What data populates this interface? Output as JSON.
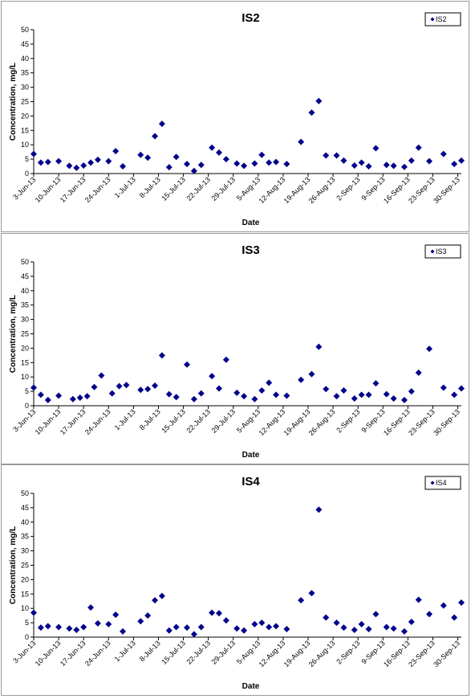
{
  "chart_data": [
    {
      "type": "scatter",
      "title": "IS2",
      "xlabel": "Date",
      "ylabel": "Concentration, mg/L",
      "ylim": [
        0,
        50
      ],
      "yticks": [
        "0",
        "5",
        "10",
        "15",
        "20",
        "25",
        "30",
        "35",
        "40",
        "45",
        "50"
      ],
      "xticks": [
        "3-Jun-13",
        "10-Jun-13",
        "17-Jun-13",
        "24-Jun-13",
        "1-Jul-13",
        "8-Jul-13",
        "15-Jul-13",
        "22-Jul-13",
        "29-Jul-13",
        "5-Aug-13",
        "12-Aug-13",
        "19-Aug-13",
        "26-Aug-13",
        "2-Sep-13",
        "9-Sep-13",
        "16-Sep-13",
        "23-Sep-13",
        "30-Sep-13"
      ],
      "xlim": [
        "2013-06-03",
        "2013-10-01"
      ],
      "legend": "top-right",
      "marker": "diamond",
      "color": "#00008B",
      "series": [
        {
          "name": "IS2",
          "points": [
            [
              "2013-06-03",
              6.8
            ],
            [
              "2013-06-05",
              3.8
            ],
            [
              "2013-06-07",
              4.0
            ],
            [
              "2013-06-10",
              4.3
            ],
            [
              "2013-06-13",
              2.7
            ],
            [
              "2013-06-15",
              2.0
            ],
            [
              "2013-06-17",
              2.8
            ],
            [
              "2013-06-19",
              3.8
            ],
            [
              "2013-06-21",
              4.8
            ],
            [
              "2013-06-24",
              4.3
            ],
            [
              "2013-06-26",
              7.8
            ],
            [
              "2013-06-28",
              2.5
            ],
            [
              "2013-07-03",
              6.5
            ],
            [
              "2013-07-05",
              5.5
            ],
            [
              "2013-07-07",
              13.0
            ],
            [
              "2013-07-09",
              17.3
            ],
            [
              "2013-07-11",
              2.2
            ],
            [
              "2013-07-13",
              5.8
            ],
            [
              "2013-07-16",
              3.3
            ],
            [
              "2013-07-18",
              0.9
            ],
            [
              "2013-07-20",
              3.0
            ],
            [
              "2013-07-23",
              9.0
            ],
            [
              "2013-07-25",
              7.3
            ],
            [
              "2013-07-27",
              5.0
            ],
            [
              "2013-07-30",
              3.5
            ],
            [
              "2013-08-01",
              2.7
            ],
            [
              "2013-08-04",
              3.5
            ],
            [
              "2013-08-06",
              6.5
            ],
            [
              "2013-08-08",
              3.8
            ],
            [
              "2013-08-10",
              4.0
            ],
            [
              "2013-08-13",
              3.3
            ],
            [
              "2013-08-17",
              11.0
            ],
            [
              "2013-08-20",
              21.2
            ],
            [
              "2013-08-22",
              25.2
            ],
            [
              "2013-08-24",
              6.3
            ],
            [
              "2013-08-27",
              6.3
            ],
            [
              "2013-08-29",
              4.5
            ],
            [
              "2013-09-01",
              2.8
            ],
            [
              "2013-09-03",
              3.8
            ],
            [
              "2013-09-05",
              2.5
            ],
            [
              "2013-09-07",
              8.8
            ],
            [
              "2013-09-10",
              3.0
            ],
            [
              "2013-09-12",
              2.7
            ],
            [
              "2013-09-15",
              2.3
            ],
            [
              "2013-09-17",
              4.5
            ],
            [
              "2013-09-19",
              9.0
            ],
            [
              "2013-09-22",
              4.3
            ],
            [
              "2013-09-26",
              6.8
            ],
            [
              "2013-09-29",
              3.3
            ],
            [
              "2013-10-01",
              4.5
            ]
          ]
        }
      ]
    },
    {
      "type": "scatter",
      "title": "IS3",
      "xlabel": "Date",
      "ylabel": "Concentration, mg/L",
      "ylim": [
        0,
        50
      ],
      "yticks": [
        "0",
        "5",
        "10",
        "15",
        "20",
        "25",
        "30",
        "35",
        "40",
        "45",
        "50"
      ],
      "xticks": [
        "3-Jun-13",
        "10-Jun-13",
        "17-Jun-13",
        "24-Jun-13",
        "1-Jul-13",
        "8-Jul-13",
        "15-Jul-13",
        "22-Jul-13",
        "29-Jul-13",
        "5-Aug-13",
        "12-Aug-13",
        "19-Aug-13",
        "26-Aug-13",
        "2-Sep-13",
        "9-Sep-13",
        "16-Sep-13",
        "23-Sep-13",
        "30-Sep-13"
      ],
      "xlim": [
        "2013-06-03",
        "2013-10-01"
      ],
      "legend": "top-right",
      "marker": "diamond",
      "color": "#00008B",
      "series": [
        {
          "name": "IS3",
          "points": [
            [
              "2013-06-03",
              6.3
            ],
            [
              "2013-06-05",
              3.8
            ],
            [
              "2013-06-07",
              2.0
            ],
            [
              "2013-06-10",
              3.5
            ],
            [
              "2013-06-14",
              2.3
            ],
            [
              "2013-06-16",
              2.8
            ],
            [
              "2013-06-18",
              3.3
            ],
            [
              "2013-06-20",
              6.5
            ],
            [
              "2013-06-22",
              10.5
            ],
            [
              "2013-06-25",
              4.3
            ],
            [
              "2013-06-27",
              6.8
            ],
            [
              "2013-06-29",
              7.2
            ],
            [
              "2013-07-03",
              5.5
            ],
            [
              "2013-07-05",
              5.8
            ],
            [
              "2013-07-07",
              7.0
            ],
            [
              "2013-07-09",
              17.5
            ],
            [
              "2013-07-11",
              4.0
            ],
            [
              "2013-07-13",
              3.0
            ],
            [
              "2013-07-16",
              14.3
            ],
            [
              "2013-07-18",
              2.3
            ],
            [
              "2013-07-20",
              4.3
            ],
            [
              "2013-07-23",
              10.3
            ],
            [
              "2013-07-25",
              6.0
            ],
            [
              "2013-07-27",
              16.0
            ],
            [
              "2013-07-30",
              4.5
            ],
            [
              "2013-08-01",
              3.3
            ],
            [
              "2013-08-04",
              2.3
            ],
            [
              "2013-08-06",
              5.3
            ],
            [
              "2013-08-08",
              8.0
            ],
            [
              "2013-08-10",
              3.8
            ],
            [
              "2013-08-13",
              3.5
            ],
            [
              "2013-08-17",
              9.0
            ],
            [
              "2013-08-20",
              11.0
            ],
            [
              "2013-08-22",
              20.5
            ],
            [
              "2013-08-24",
              5.8
            ],
            [
              "2013-08-27",
              3.3
            ],
            [
              "2013-08-29",
              5.3
            ],
            [
              "2013-09-01",
              2.5
            ],
            [
              "2013-09-03",
              3.8
            ],
            [
              "2013-09-05",
              3.8
            ],
            [
              "2013-09-07",
              7.8
            ],
            [
              "2013-09-10",
              4.0
            ],
            [
              "2013-09-12",
              2.5
            ],
            [
              "2013-09-15",
              2.0
            ],
            [
              "2013-09-17",
              5.0
            ],
            [
              "2013-09-19",
              11.5
            ],
            [
              "2013-09-22",
              19.8
            ],
            [
              "2013-09-26",
              6.3
            ],
            [
              "2013-09-29",
              3.8
            ],
            [
              "2013-10-01",
              6.0
            ]
          ]
        }
      ]
    },
    {
      "type": "scatter",
      "title": "IS4",
      "xlabel": "Date",
      "ylabel": "Concentration, mg/L",
      "ylim": [
        0,
        50
      ],
      "yticks": [
        "0",
        "5",
        "10",
        "15",
        "20",
        "25",
        "30",
        "35",
        "40",
        "45",
        "50"
      ],
      "xticks": [
        "3-Jun-13",
        "10-Jun-13",
        "17-Jun-13",
        "24-Jun-13",
        "1-Jul-13",
        "8-Jul-13",
        "15-Jul-13",
        "22-Jul-13",
        "29-Jul-13",
        "5-Aug-13",
        "12-Aug-13",
        "19-Aug-13",
        "26-Aug-13",
        "2-Sep-13",
        "9-Sep-13",
        "16-Sep-13",
        "23-Sep-13",
        "30-Sep-13"
      ],
      "xlim": [
        "2013-06-03",
        "2013-10-01"
      ],
      "legend": "top-right",
      "marker": "diamond",
      "color": "#00008B",
      "series": [
        {
          "name": "IS4",
          "points": [
            [
              "2013-06-03",
              8.5
            ],
            [
              "2013-06-05",
              3.3
            ],
            [
              "2013-06-07",
              3.8
            ],
            [
              "2013-06-10",
              3.5
            ],
            [
              "2013-06-13",
              3.0
            ],
            [
              "2013-06-15",
              2.5
            ],
            [
              "2013-06-17",
              3.5
            ],
            [
              "2013-06-19",
              10.3
            ],
            [
              "2013-06-21",
              4.8
            ],
            [
              "2013-06-24",
              4.5
            ],
            [
              "2013-06-26",
              7.8
            ],
            [
              "2013-06-28",
              2.0
            ],
            [
              "2013-07-03",
              5.5
            ],
            [
              "2013-07-05",
              7.5
            ],
            [
              "2013-07-07",
              12.8
            ],
            [
              "2013-07-09",
              14.3
            ],
            [
              "2013-07-11",
              2.3
            ],
            [
              "2013-07-13",
              3.5
            ],
            [
              "2013-07-16",
              3.3
            ],
            [
              "2013-07-18",
              1.0
            ],
            [
              "2013-07-20",
              3.5
            ],
            [
              "2013-07-23",
              8.5
            ],
            [
              "2013-07-25",
              8.3
            ],
            [
              "2013-07-27",
              5.8
            ],
            [
              "2013-07-30",
              3.0
            ],
            [
              "2013-08-01",
              2.3
            ],
            [
              "2013-08-04",
              4.5
            ],
            [
              "2013-08-06",
              5.0
            ],
            [
              "2013-08-08",
              3.5
            ],
            [
              "2013-08-10",
              3.8
            ],
            [
              "2013-08-13",
              2.8
            ],
            [
              "2013-08-17",
              12.8
            ],
            [
              "2013-08-20",
              15.3
            ],
            [
              "2013-08-22",
              44.3
            ],
            [
              "2013-08-24",
              6.8
            ],
            [
              "2013-08-27",
              5.0
            ],
            [
              "2013-08-29",
              3.3
            ],
            [
              "2013-09-01",
              2.5
            ],
            [
              "2013-09-03",
              4.5
            ],
            [
              "2013-09-05",
              2.8
            ],
            [
              "2013-09-07",
              8.0
            ],
            [
              "2013-09-10",
              3.5
            ],
            [
              "2013-09-12",
              3.0
            ],
            [
              "2013-09-15",
              2.0
            ],
            [
              "2013-09-17",
              5.3
            ],
            [
              "2013-09-19",
              13.0
            ],
            [
              "2013-09-22",
              8.0
            ],
            [
              "2013-09-26",
              11.0
            ],
            [
              "2013-09-29",
              6.8
            ],
            [
              "2013-10-01",
              12.0
            ]
          ]
        }
      ]
    }
  ]
}
